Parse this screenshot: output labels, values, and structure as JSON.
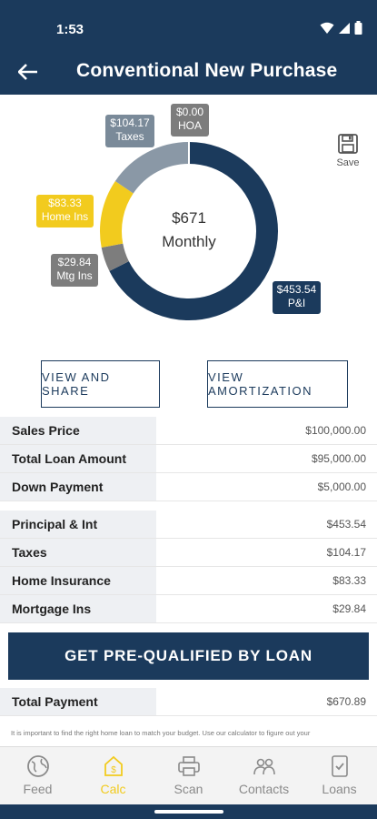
{
  "status": {
    "time": "1:53"
  },
  "header": {
    "title": "Conventional New Purchase"
  },
  "chart_data": {
    "type": "pie",
    "center": {
      "amount": "$671",
      "label": "Monthly"
    },
    "slices": [
      {
        "name": "P&I",
        "amount": "$453.54",
        "value": 453.54,
        "color": "#1b3a5c"
      },
      {
        "name": "Mtg Ins",
        "amount": "$29.84",
        "value": 29.84,
        "color": "#7d7d7d"
      },
      {
        "name": "Home Ins",
        "amount": "$83.33",
        "value": 83.33,
        "color": "#f2cb1e"
      },
      {
        "name": "Taxes",
        "amount": "$104.17",
        "value": 104.17,
        "color": "#8a98a6"
      },
      {
        "name": "HOA",
        "amount": "$0.00",
        "value": 0,
        "color": "#7d7d7d"
      }
    ]
  },
  "save": {
    "label": "Save"
  },
  "buttons": {
    "share": "VIEW AND SHARE",
    "amortization": "VIEW AMORTIZATION"
  },
  "loan": [
    {
      "label": "Sales Price",
      "value": "$100,000.00"
    },
    {
      "label": "Total Loan Amount",
      "value": "$95,000.00"
    },
    {
      "label": "Down Payment",
      "value": "$5,000.00"
    }
  ],
  "payment": [
    {
      "label": "Principal & Int",
      "value": "$453.54"
    },
    {
      "label": "Taxes",
      "value": "$104.17"
    },
    {
      "label": "Home Insurance",
      "value": "$83.33"
    },
    {
      "label": "Mortgage Ins",
      "value": "$29.84"
    }
  ],
  "cta": {
    "label": "GET PRE-QUALIFIED BY LOAN"
  },
  "total": {
    "label": "Total Payment",
    "value": "$670.89"
  },
  "disclaimer": "It is important to find the right home loan to match your budget. Use our calculator to figure out your",
  "nav": [
    {
      "label": "Feed",
      "icon": "globe-icon"
    },
    {
      "label": "Calc",
      "icon": "calculator-icon"
    },
    {
      "label": "Scan",
      "icon": "printer-icon"
    },
    {
      "label": "Contacts",
      "icon": "contacts-icon"
    },
    {
      "label": "Loans",
      "icon": "checklist-icon"
    }
  ],
  "colors": {
    "primary": "#1b3a5c",
    "accent": "#f2cb1e"
  }
}
